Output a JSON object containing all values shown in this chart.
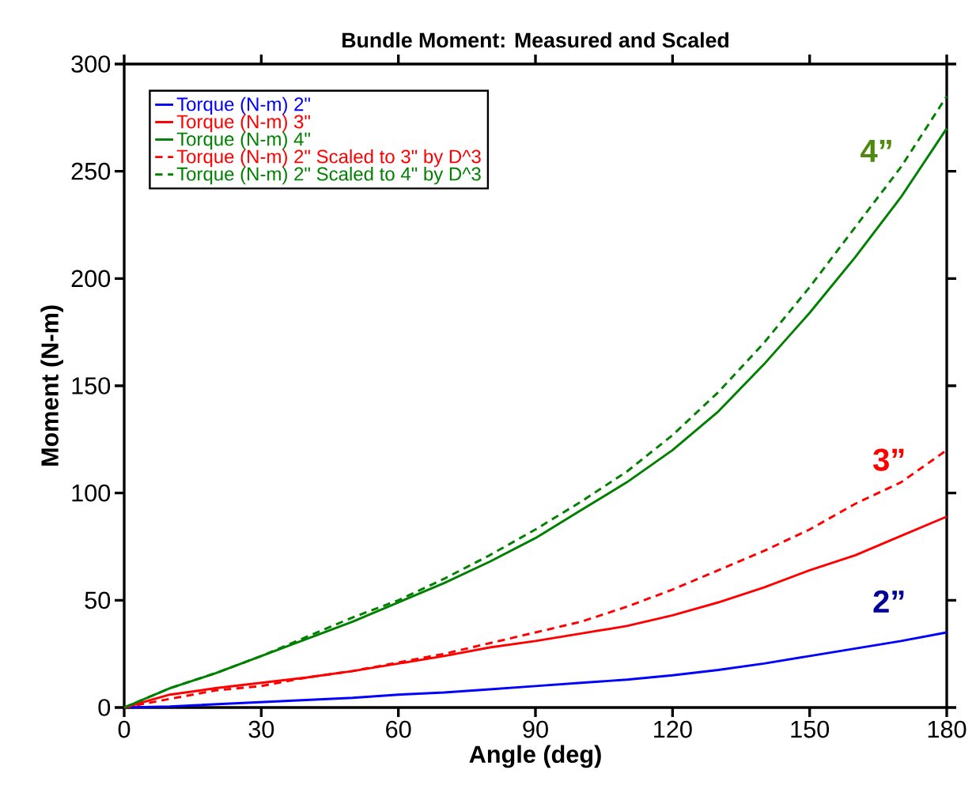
{
  "chart_data": {
    "type": "line",
    "title": "Bundle Moment: Measured and Scaled",
    "xlabel": "Angle (deg)",
    "ylabel": "Moment (N-m)",
    "x": [
      0,
      10,
      20,
      30,
      40,
      50,
      60,
      70,
      80,
      90,
      100,
      110,
      120,
      130,
      140,
      150,
      160,
      170,
      180
    ],
    "series": [
      {
        "name": "Torque (N-m) 2\"",
        "color": "#0000ff",
        "line_style": "solid",
        "values": [
          0,
          0.5,
          1.5,
          2.5,
          3.5,
          4.5,
          6,
          7,
          8.5,
          10,
          11.5,
          13,
          15,
          17.5,
          20.5,
          24,
          27.5,
          31,
          35
        ]
      },
      {
        "name": "Torque (N-m) 3\"",
        "color": "#ff0000",
        "line_style": "solid",
        "values": [
          0,
          6,
          9,
          11.5,
          14,
          17,
          20.5,
          24,
          28,
          31,
          34.5,
          38,
          43,
          49,
          56,
          64,
          71,
          80,
          89
        ]
      },
      {
        "name": "Torque (N-m) 4\"",
        "color": "#008000",
        "line_style": "solid",
        "values": [
          0,
          9,
          16,
          24,
          32,
          40,
          49,
          58,
          68,
          79,
          92,
          105,
          120,
          138,
          160,
          184,
          210,
          238,
          270
        ]
      },
      {
        "name": "Torque (N-m) 2\" Scaled to 3\" by D^3",
        "color": "#ff0000",
        "line_style": "dashed",
        "values": [
          0,
          4,
          8,
          10,
          14,
          17,
          21,
          25,
          30,
          35,
          40,
          47,
          55,
          64,
          73,
          83,
          95,
          105,
          120
        ]
      },
      {
        "name": "Torque (N-m) 2\" Scaled to 4\" by D^3",
        "color": "#008000",
        "line_style": "dashed",
        "values": [
          0,
          9,
          16,
          24,
          33,
          42,
          50,
          60,
          71,
          83,
          96,
          110,
          127,
          147,
          170,
          196,
          224,
          252,
          285
        ]
      }
    ],
    "xlim": [
      0,
      180
    ],
    "xticks": [
      0,
      30,
      60,
      90,
      120,
      150,
      180
    ],
    "ylim": [
      0,
      300
    ],
    "yticks": [
      0,
      50,
      100,
      150,
      200,
      250,
      300
    ],
    "grid": false,
    "legend": "top left",
    "marker": "none",
    "annotations": [
      "4”",
      "3”",
      "2”"
    ]
  }
}
